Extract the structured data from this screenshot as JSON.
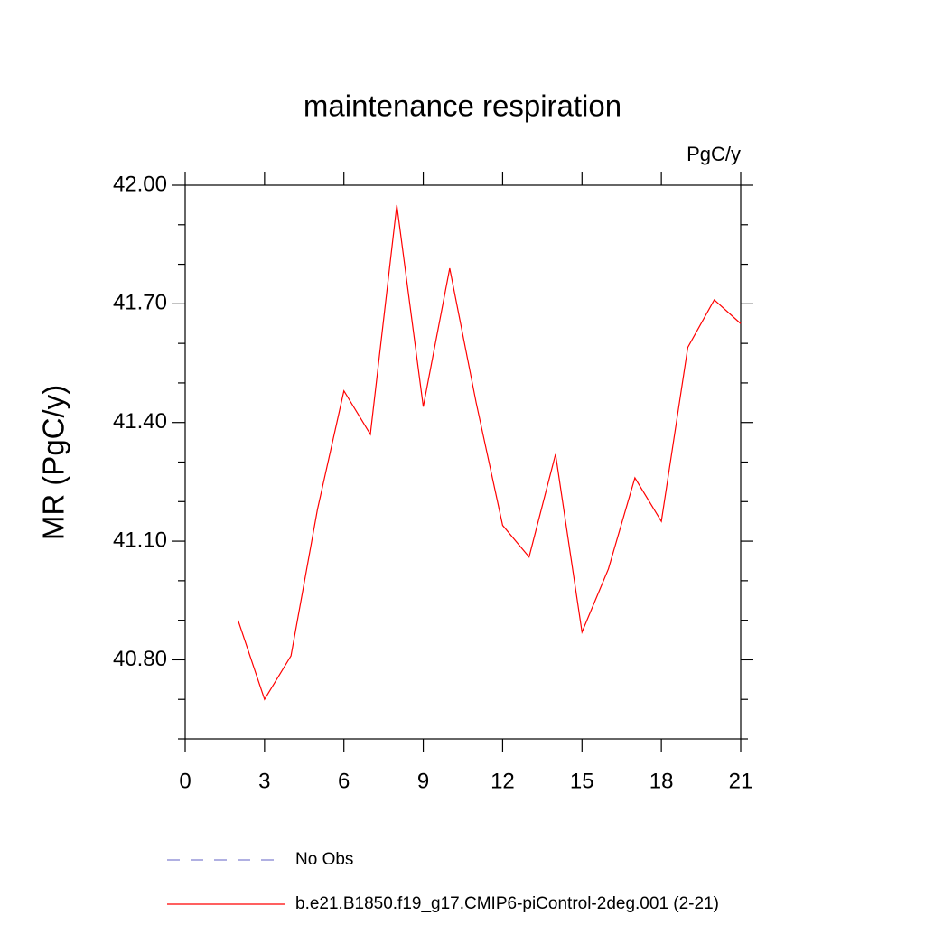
{
  "chart_data": {
    "type": "line",
    "title": "maintenance respiration",
    "units": "PgC/y",
    "y_label": "MR  (PgC/y)",
    "x": [
      2,
      3,
      4,
      5,
      6,
      7,
      8,
      9,
      10,
      11,
      12,
      13,
      14,
      15,
      16,
      17,
      18,
      19,
      20,
      21
    ],
    "series": [
      {
        "name": "b.e21.B1850.f19_g17.CMIP6-piControl-2deg.001 (2-21)",
        "color": "#ff0000",
        "values": [
          40.9,
          40.7,
          40.81,
          41.18,
          41.48,
          41.37,
          41.95,
          41.44,
          41.79,
          41.45,
          41.14,
          41.06,
          41.32,
          40.87,
          41.03,
          41.26,
          41.15,
          41.59,
          41.71,
          41.65
        ]
      }
    ],
    "reference_lines": [
      {
        "name": "No Obs",
        "color": "#8080d0",
        "dashed": true
      }
    ],
    "xlim": [
      0,
      21
    ],
    "xticks": [
      0,
      3,
      6,
      9,
      12,
      15,
      18,
      21
    ],
    "ylim": [
      40.6,
      42.0
    ],
    "yticks": [
      {
        "value": 40.8,
        "label": "40.80"
      },
      {
        "value": 41.1,
        "label": "41.10"
      },
      {
        "value": 41.4,
        "label": "41.40"
      },
      {
        "value": 41.7,
        "label": "41.70"
      },
      {
        "value": 42.0,
        "label": "42.00"
      }
    ],
    "yticks_minor": [
      40.6,
      40.7,
      40.9,
      41.0,
      41.2,
      41.3,
      41.5,
      41.6,
      41.8,
      41.9
    ]
  }
}
